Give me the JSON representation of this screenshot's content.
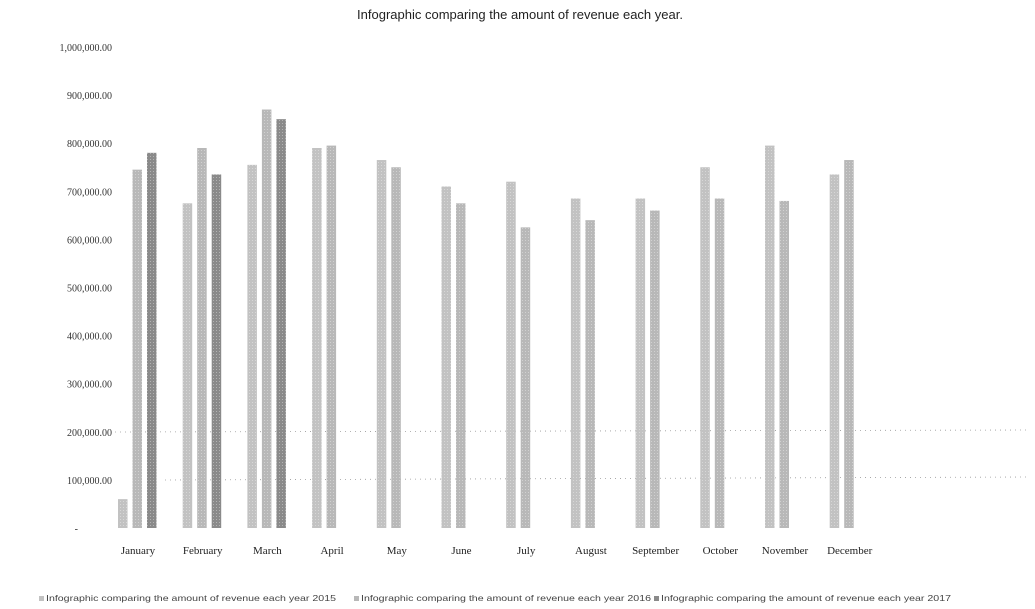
{
  "chart_data": {
    "type": "bar",
    "title": "Infographic  comparing the amount of revenue each year.",
    "xlabel": "",
    "ylabel": "",
    "ylim": [
      0,
      1000000
    ],
    "yticks": [
      {
        "value": 0,
        "label": "-"
      },
      {
        "value": 100000,
        "label": "100,000.00"
      },
      {
        "value": 200000,
        "label": "200,000.00"
      },
      {
        "value": 300000,
        "label": "300,000.00"
      },
      {
        "value": 400000,
        "label": "400,000.00"
      },
      {
        "value": 500000,
        "label": "500,000.00"
      },
      {
        "value": 600000,
        "label": "600,000.00"
      },
      {
        "value": 700000,
        "label": "700,000.00"
      },
      {
        "value": 800000,
        "label": "800,000.00"
      },
      {
        "value": 900000,
        "label": "900,000.00"
      },
      {
        "value": 1000000,
        "label": "1,000,000.00"
      }
    ],
    "categories": [
      "January",
      "February",
      "March",
      "April",
      "May",
      "June",
      "July",
      "August",
      "September",
      "October",
      "November",
      "December"
    ],
    "series": [
      {
        "name": "Infographic  comparing the amount of revenue each year 2015",
        "color": "#c2c2c2",
        "values": [
          60000,
          675000,
          755000,
          790000,
          765000,
          710000,
          720000,
          685000,
          685000,
          750000,
          795000,
          735000
        ]
      },
      {
        "name": "Infographic  comparing the amount of revenue each year 2016",
        "color": "#b8b8b8",
        "values": [
          745000,
          790000,
          870000,
          795000,
          750000,
          675000,
          625000,
          640000,
          660000,
          685000,
          680000,
          765000
        ]
      },
      {
        "name": "Infographic  comparing the amount of revenue each year 2017",
        "color": "#8a8a8a",
        "values": [
          780000,
          735000,
          850000,
          null,
          null,
          null,
          null,
          null,
          null,
          null,
          null,
          null
        ]
      }
    ],
    "grid": false,
    "legend_position": "bottom"
  }
}
